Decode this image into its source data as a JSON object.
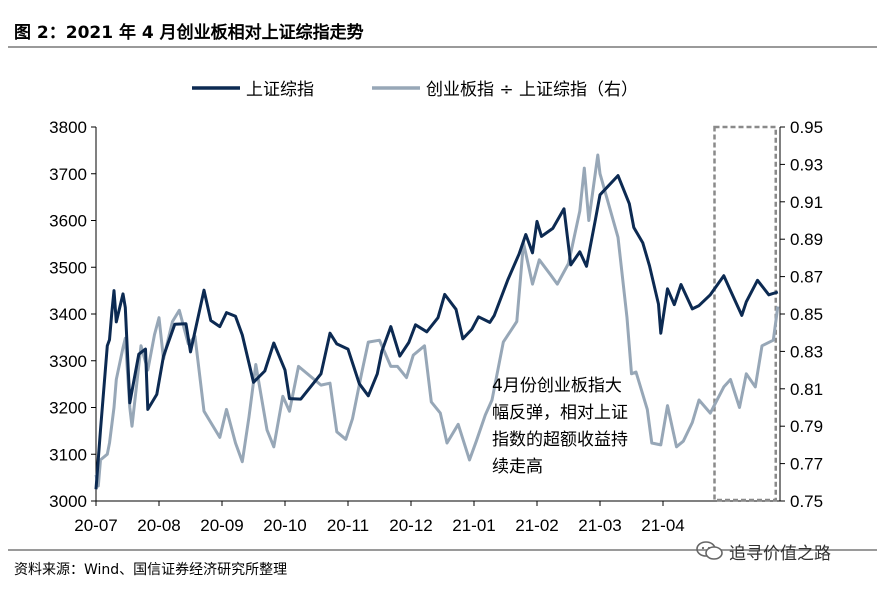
{
  "header": {
    "title": "图 2：2021 年 4 月创业板相对上证综指走势"
  },
  "footer": {
    "source": "资料来源：Wind、国信证券经济研究所整理",
    "watermark": "追寻价值之路"
  },
  "chart_data": {
    "type": "line",
    "title": "",
    "x_ticks": [
      "20-07",
      "20-08",
      "20-09",
      "20-10",
      "20-11",
      "20-12",
      "21-01",
      "21-02",
      "21-03",
      "21-04"
    ],
    "ylim": [
      3000,
      3800
    ],
    "y_ticks": [
      3000,
      3100,
      3200,
      3300,
      3400,
      3500,
      3600,
      3700,
      3800
    ],
    "y2lim": [
      0.75,
      0.95
    ],
    "y2_ticks": [
      "0.75",
      "0.77",
      "0.79",
      "0.81",
      "0.83",
      "0.85",
      "0.87",
      "0.89",
      "0.91",
      "0.93",
      "0.95"
    ],
    "legend": {
      "placement": "top"
    },
    "series": [
      {
        "name": "上证综指",
        "axis": "left",
        "color": "#0c2a52",
        "x": [
          "2020-07-01",
          "2020-07-02",
          "2020-07-03",
          "2020-07-06",
          "2020-07-07",
          "2020-07-08",
          "2020-07-09",
          "2020-07-10",
          "2020-07-13",
          "2020-07-14",
          "2020-07-16",
          "2020-07-20",
          "2020-07-23",
          "2020-07-24",
          "2020-07-28",
          "2020-07-31",
          "2020-08-05",
          "2020-08-10",
          "2020-08-12",
          "2020-08-18",
          "2020-08-21",
          "2020-08-25",
          "2020-08-28",
          "2020-09-01",
          "2020-09-04",
          "2020-09-09",
          "2020-09-14",
          "2020-09-18",
          "2020-09-23",
          "2020-09-25",
          "2020-09-30",
          "2020-10-09",
          "2020-10-13",
          "2020-10-16",
          "2020-10-21",
          "2020-10-26",
          "2020-10-30",
          "2020-11-03",
          "2020-11-05",
          "2020-11-09",
          "2020-11-13",
          "2020-11-17",
          "2020-11-20",
          "2020-11-25",
          "2020-11-30",
          "2020-12-03",
          "2020-12-08",
          "2020-12-11",
          "2020-12-15",
          "2020-12-18",
          "2020-12-23",
          "2020-12-25",
          "2020-12-31",
          "2021-01-05",
          "2021-01-08",
          "2021-01-11",
          "2021-01-13",
          "2021-01-15",
          "2021-01-20",
          "2021-01-25",
          "2021-01-28",
          "2021-02-01",
          "2021-02-04",
          "2021-02-08",
          "2021-02-10",
          "2021-02-18",
          "2021-02-23",
          "2021-02-25",
          "2021-03-01",
          "2021-03-04",
          "2021-03-08",
          "2021-03-09",
          "2021-03-12",
          "2021-03-15",
          "2021-03-18",
          "2021-03-23",
          "2021-03-26",
          "2021-03-31",
          "2021-04-06",
          "2021-04-09",
          "2021-04-14",
          "2021-04-16",
          "2021-04-21",
          "2021-04-26",
          "2021-04-30"
        ],
        "values": [
          3025,
          3090,
          3152,
          3332,
          3345,
          3403,
          3450,
          3383,
          3443,
          3414,
          3210,
          3314,
          3325,
          3196,
          3228,
          3310,
          3378,
          3379,
          3319,
          3451,
          3386,
          3373,
          3403,
          3395,
          3355,
          3254,
          3278,
          3338,
          3280,
          3219,
          3218,
          3272,
          3359,
          3336,
          3325,
          3251,
          3225,
          3272,
          3320,
          3373,
          3310,
          3339,
          3377,
          3362,
          3392,
          3442,
          3410,
          3347,
          3367,
          3394,
          3382,
          3397,
          3473,
          3528,
          3570,
          3531,
          3598,
          3566,
          3583,
          3625,
          3505,
          3533,
          3502,
          3603,
          3655,
          3696,
          3636,
          3585,
          3552,
          3503,
          3421,
          3359,
          3454,
          3420,
          3463,
          3411,
          3418,
          3441,
          3482,
          3450,
          3397,
          3426,
          3472,
          3441,
          3447
        ]
      },
      {
        "name": "创业板指 ÷ 上证综指（右）",
        "axis": "right",
        "color": "#97a7b7",
        "x": [
          "2020-07-01",
          "2020-07-02",
          "2020-07-03",
          "2020-07-06",
          "2020-07-07",
          "2020-07-09",
          "2020-07-10",
          "2020-07-13",
          "2020-07-14",
          "2020-07-16",
          "2020-07-17",
          "2020-07-21",
          "2020-07-24",
          "2020-07-27",
          "2020-07-29",
          "2020-07-31",
          "2020-08-04",
          "2020-08-07",
          "2020-08-11",
          "2020-08-14",
          "2020-08-18",
          "2020-08-21",
          "2020-08-25",
          "2020-08-28",
          "2020-09-01",
          "2020-09-04",
          "2020-09-07",
          "2020-09-10",
          "2020-09-15",
          "2020-09-18",
          "2020-09-22",
          "2020-09-25",
          "2020-09-29",
          "2020-10-09",
          "2020-10-13",
          "2020-10-16",
          "2020-10-20",
          "2020-10-23",
          "2020-10-27",
          "2020-10-30",
          "2020-11-04",
          "2020-11-09",
          "2020-11-12",
          "2020-11-16",
          "2020-11-19",
          "2020-11-24",
          "2020-11-27",
          "2020-12-01",
          "2020-12-04",
          "2020-12-09",
          "2020-12-14",
          "2020-12-17",
          "2020-12-21",
          "2020-12-24",
          "2020-12-29",
          "2021-01-04",
          "2021-01-07",
          "2021-01-11",
          "2021-01-14",
          "2021-01-19",
          "2021-01-22",
          "2021-01-27",
          "2021-02-01",
          "2021-02-03",
          "2021-02-05",
          "2021-02-09",
          "2021-02-10",
          "2021-02-18",
          "2021-02-22",
          "2021-02-24",
          "2021-02-26",
          "2021-03-03",
          "2021-03-05",
          "2021-03-09",
          "2021-03-12",
          "2021-03-16",
          "2021-03-19",
          "2021-03-23",
          "2021-03-26",
          "2021-03-31",
          "2021-04-06",
          "2021-04-09",
          "2021-04-13",
          "2021-04-16",
          "2021-04-20",
          "2021-04-23",
          "2021-04-28",
          "2021-04-30"
        ],
        "values": [
          0.764,
          0.758,
          0.772,
          0.775,
          0.781,
          0.8,
          0.815,
          0.832,
          0.837,
          0.8,
          0.79,
          0.833,
          0.82,
          0.839,
          0.848,
          0.826,
          0.846,
          0.852,
          0.834,
          0.838,
          0.798,
          0.792,
          0.784,
          0.799,
          0.781,
          0.771,
          0.795,
          0.823,
          0.788,
          0.779,
          0.806,
          0.798,
          0.822,
          0.812,
          0.813,
          0.787,
          0.783,
          0.794,
          0.818,
          0.835,
          0.836,
          0.822,
          0.822,
          0.816,
          0.828,
          0.833,
          0.803,
          0.797,
          0.781,
          0.791,
          0.772,
          0.782,
          0.796,
          0.804,
          0.835,
          0.846,
          0.888,
          0.866,
          0.879,
          0.871,
          0.866,
          0.877,
          0.905,
          0.928,
          0.9,
          0.935,
          0.925,
          0.891,
          0.848,
          0.818,
          0.819,
          0.799,
          0.781,
          0.78,
          0.801,
          0.779,
          0.782,
          0.792,
          0.804,
          0.797,
          0.811,
          0.815,
          0.8,
          0.818,
          0.811,
          0.833,
          0.836,
          0.854
        ]
      }
    ],
    "highlight": {
      "from": "2021-04-01",
      "to": "2021-04-30",
      "style": "dashed-box"
    },
    "annotation": {
      "lines": [
        "4月份创业板指大",
        "幅反弹，相对上证",
        "指数的超额收益持",
        "续走高"
      ]
    }
  }
}
